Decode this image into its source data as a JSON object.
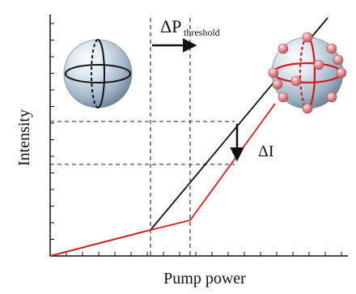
{
  "labels": {
    "ylabel": "Intensity",
    "xlabel": "Pump power",
    "delta_p_main": "ΔP",
    "delta_p_sub": "threshold",
    "delta_i": "ΔI"
  },
  "colors": {
    "axis": "#111111",
    "reference_curve": "#111111",
    "modified_curve": "#d81e1e",
    "dashed_guides": "#222222",
    "sphere_body": "#9fb3c4",
    "sphere_highlight": "#ffffff",
    "ring_left": "#111111",
    "ring_right": "#d61a1a",
    "particles": "#e0868b"
  },
  "icons": {
    "left_sphere": "bare-sphere-icon",
    "right_sphere": "decorated-sphere-icon",
    "threshold_arrow": "right-arrow-icon",
    "intensity_arrow": "down-arrow-icon"
  }
}
